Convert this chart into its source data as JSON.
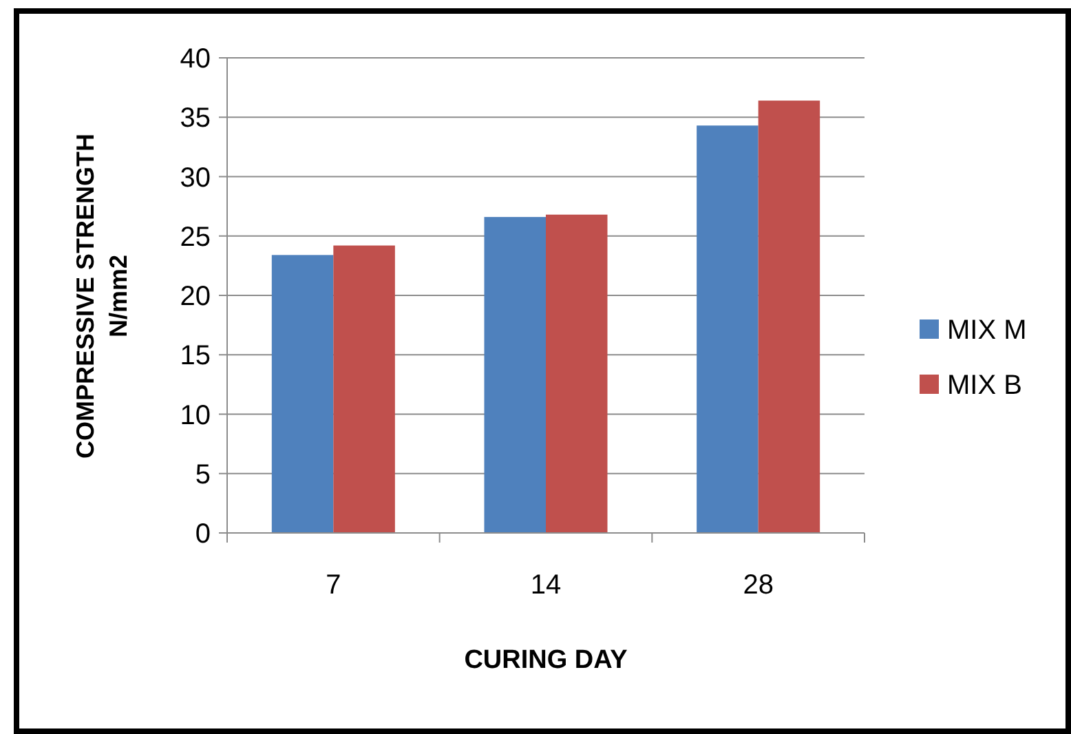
{
  "chart_data": {
    "type": "bar",
    "xlabel": "CURING DAY",
    "ylabel": "COMPRESSIVE STRENGTH N/mm2",
    "categories": [
      "7",
      "14",
      "28"
    ],
    "series": [
      {
        "name": "MIX M",
        "color": "#4f81bd",
        "values": [
          23.4,
          26.6,
          34.3
        ]
      },
      {
        "name": "MIX B",
        "color": "#c0504d",
        "values": [
          24.2,
          26.8,
          36.4
        ]
      }
    ],
    "ylim": [
      0,
      40
    ],
    "yticks": [
      0,
      5,
      10,
      15,
      20,
      25,
      30,
      35,
      40
    ],
    "grid": "y",
    "legend": "right"
  }
}
